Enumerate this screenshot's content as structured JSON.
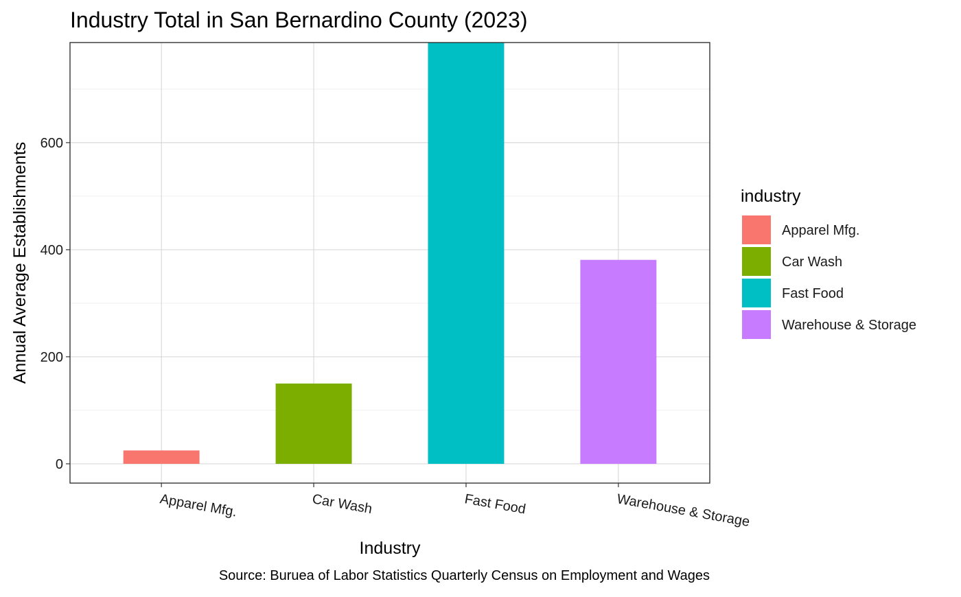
{
  "chart_data": {
    "type": "bar",
    "title": "Industry Total in San Bernardino County (2023)",
    "xlabel": "Industry",
    "ylabel": "Annual Average Establishments",
    "caption": "Source: Buruea of Labor Statistics Quarterly Census on Employment and Wages",
    "categories": [
      "Apparel Mfg.",
      "Car Wash",
      "Fast Food",
      "Warehouse & Storage"
    ],
    "values": [
      25,
      150,
      787,
      381
    ],
    "colors": [
      "#F8766D",
      "#7CAE00",
      "#00BFC4",
      "#C77CFF"
    ],
    "ylim": [
      -36,
      787
    ],
    "yticks": [
      0,
      200,
      400,
      600
    ],
    "yticks_labels": [
      "0",
      "200",
      "400",
      "600"
    ],
    "grid": true,
    "legend": {
      "title": "industry",
      "placement": "right",
      "entries": [
        "Apparel Mfg.",
        "Car Wash",
        "Fast Food",
        "Warehouse & Storage"
      ]
    }
  }
}
